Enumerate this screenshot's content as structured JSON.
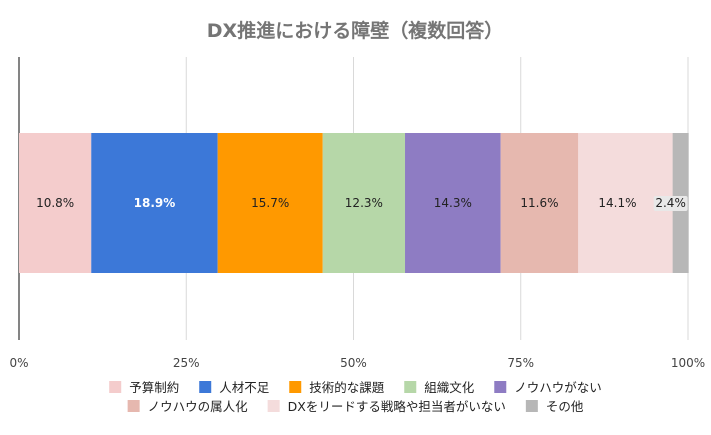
{
  "chart_data": {
    "type": "bar",
    "orientation": "horizontal-stacked-100",
    "title": "DX推進における障壁（複数回答）",
    "xlim": [
      0,
      100
    ],
    "x_ticks": [
      "0%",
      "25%",
      "50%",
      "75%",
      "100%"
    ],
    "grid": true,
    "legend_position": "bottom",
    "series": [
      {
        "name": "予算制約",
        "value": 10.8,
        "label": "10.8%",
        "color": "#f4cccc",
        "text_color": "#222222"
      },
      {
        "name": "人材不足",
        "value": 18.9,
        "label": "18.9%",
        "color": "#3c78d8",
        "text_color": "#ffffff"
      },
      {
        "name": "技術的な課題",
        "value": 15.7,
        "label": "15.7%",
        "color": "#ff9900",
        "text_color": "#222222"
      },
      {
        "name": "組織文化",
        "value": 12.3,
        "label": "12.3%",
        "color": "#b6d7a8",
        "text_color": "#222222"
      },
      {
        "name": "ノウハウがない",
        "value": 14.3,
        "label": "14.3%",
        "color": "#8e7cc3",
        "text_color": "#222222"
      },
      {
        "name": "ノウハウの属人化",
        "value": 11.6,
        "label": "11.6%",
        "color": "#e6b8af",
        "text_color": "#222222"
      },
      {
        "name": "DXをリードする戦略や担当者がいない",
        "value": 14.1,
        "label": "14.1%",
        "color": "#f4dcdc",
        "text_color": "#222222"
      },
      {
        "name": "その他",
        "value": 2.4,
        "label": "2.4%",
        "color": "#b7b7b7",
        "text_color": "#222222"
      }
    ]
  }
}
